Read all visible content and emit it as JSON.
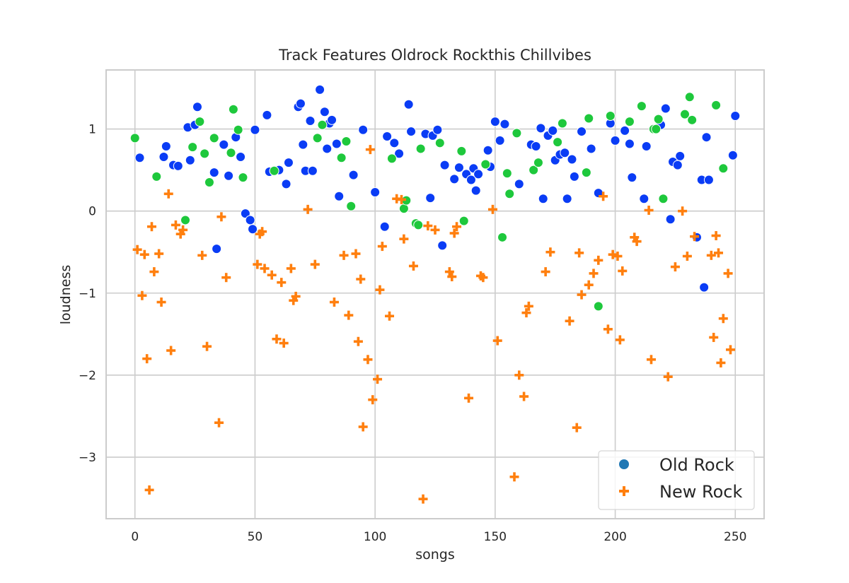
{
  "chart_data": {
    "type": "scatter",
    "title": "Track Features Oldrock Rockthis Chillvibes",
    "xlabel": "songs",
    "ylabel": "loudness",
    "xlim": [
      -12,
      262
    ],
    "ylim": [
      -3.75,
      1.72
    ],
    "xticks": [
      0,
      50,
      100,
      150,
      200,
      250
    ],
    "yticks": [
      -3,
      -2,
      -1,
      0,
      1
    ],
    "ytick_labels": [
      "−3",
      "−2",
      "−1",
      "0",
      "1"
    ],
    "grid": true,
    "legend": {
      "placement": "lower-right",
      "entries": [
        {
          "label": "Old Rock",
          "marker": "circle",
          "color": "#1f77b4"
        },
        {
          "label": "New Rock",
          "marker": "plus",
          "color": "#ff7f0e"
        }
      ]
    },
    "series": [
      {
        "marker": "circle",
        "color": "#0a3cf5",
        "points": [
          [
            2,
            0.65
          ],
          [
            12,
            0.66
          ],
          [
            13,
            0.79
          ],
          [
            16,
            0.56
          ],
          [
            18,
            0.55
          ],
          [
            22,
            1.02
          ],
          [
            23,
            0.62
          ],
          [
            25,
            1.05
          ],
          [
            26,
            1.27
          ],
          [
            33,
            0.47
          ],
          [
            34,
            -0.46
          ],
          [
            37,
            0.81
          ],
          [
            39,
            0.43
          ],
          [
            42,
            0.9
          ],
          [
            44,
            0.66
          ],
          [
            46,
            -0.03
          ],
          [
            48,
            -0.11
          ],
          [
            49,
            -0.22
          ],
          [
            50,
            0.99
          ],
          [
            55,
            1.17
          ],
          [
            56,
            0.48
          ],
          [
            58,
            0.49
          ],
          [
            60,
            0.5
          ],
          [
            63,
            0.33
          ],
          [
            64,
            0.59
          ],
          [
            68,
            1.27
          ],
          [
            69,
            1.31
          ],
          [
            70,
            0.81
          ],
          [
            71,
            0.49
          ],
          [
            73,
            1.1
          ],
          [
            74,
            0.49
          ],
          [
            77,
            1.48
          ],
          [
            79,
            1.21
          ],
          [
            80,
            0.76
          ],
          [
            81,
            1.07
          ],
          [
            82,
            1.11
          ],
          [
            84,
            0.82
          ],
          [
            85,
            0.18
          ],
          [
            91,
            0.44
          ],
          [
            95,
            0.99
          ],
          [
            100,
            0.23
          ],
          [
            104,
            -0.19
          ],
          [
            105,
            0.91
          ],
          [
            108,
            0.83
          ],
          [
            110,
            0.7
          ],
          [
            114,
            1.3
          ],
          [
            115,
            0.97
          ],
          [
            121,
            0.94
          ],
          [
            123,
            0.16
          ],
          [
            124,
            0.92
          ],
          [
            126,
            0.99
          ],
          [
            128,
            -0.42
          ],
          [
            129,
            0.56
          ],
          [
            133,
            0.39
          ],
          [
            135,
            0.53
          ],
          [
            138,
            0.45
          ],
          [
            140,
            0.38
          ],
          [
            141,
            0.52
          ],
          [
            142,
            0.25
          ],
          [
            143,
            0.45
          ],
          [
            147,
            0.74
          ],
          [
            148,
            0.54
          ],
          [
            150,
            1.09
          ],
          [
            152,
            0.86
          ],
          [
            154,
            1.06
          ],
          [
            160,
            0.33
          ],
          [
            165,
            0.81
          ],
          [
            167,
            0.79
          ],
          [
            169,
            1.01
          ],
          [
            170,
            0.15
          ],
          [
            172,
            0.92
          ],
          [
            174,
            0.98
          ],
          [
            175,
            0.62
          ],
          [
            177,
            0.69
          ],
          [
            179,
            0.71
          ],
          [
            180,
            0.15
          ],
          [
            182,
            0.63
          ],
          [
            183,
            0.42
          ],
          [
            186,
            0.97
          ],
          [
            190,
            0.76
          ],
          [
            193,
            0.22
          ],
          [
            198,
            1.07
          ],
          [
            200,
            0.86
          ],
          [
            204,
            0.98
          ],
          [
            206,
            0.82
          ],
          [
            207,
            0.41
          ],
          [
            212,
            0.15
          ],
          [
            213,
            0.79
          ],
          [
            219,
            1.05
          ],
          [
            221,
            1.25
          ],
          [
            223,
            -0.1
          ],
          [
            224,
            0.6
          ],
          [
            226,
            0.56
          ],
          [
            227,
            0.67
          ],
          [
            234,
            -0.32
          ],
          [
            236,
            0.38
          ],
          [
            237,
            -0.93
          ],
          [
            238,
            0.9
          ],
          [
            239,
            0.38
          ],
          [
            249,
            0.68
          ],
          [
            250,
            1.16
          ]
        ]
      },
      {
        "marker": "circle",
        "color": "#1ec83c",
        "points": [
          [
            0,
            0.89
          ],
          [
            9,
            0.42
          ],
          [
            21,
            -0.11
          ],
          [
            24,
            0.78
          ],
          [
            27,
            1.09
          ],
          [
            29,
            0.7
          ],
          [
            31,
            0.35
          ],
          [
            33,
            0.89
          ],
          [
            40,
            0.71
          ],
          [
            41,
            1.24
          ],
          [
            43,
            0.99
          ],
          [
            45,
            0.41
          ],
          [
            58,
            0.49
          ],
          [
            76,
            0.89
          ],
          [
            78,
            1.05
          ],
          [
            86,
            0.65
          ],
          [
            88,
            0.85
          ],
          [
            90,
            0.06
          ],
          [
            107,
            0.64
          ],
          [
            112,
            0.03
          ],
          [
            113,
            0.13
          ],
          [
            117,
            -0.15
          ],
          [
            118,
            -0.17
          ],
          [
            119,
            0.76
          ],
          [
            127,
            0.83
          ],
          [
            136,
            0.73
          ],
          [
            137,
            -0.12
          ],
          [
            146,
            0.57
          ],
          [
            153,
            -0.32
          ],
          [
            155,
            0.46
          ],
          [
            156,
            0.21
          ],
          [
            159,
            0.95
          ],
          [
            166,
            0.5
          ],
          [
            168,
            0.59
          ],
          [
            176,
            0.84
          ],
          [
            178,
            1.07
          ],
          [
            188,
            0.47
          ],
          [
            189,
            1.13
          ],
          [
            193,
            -1.16
          ],
          [
            198,
            1.16
          ],
          [
            206,
            1.09
          ],
          [
            211,
            1.28
          ],
          [
            216,
            1.0
          ],
          [
            217,
            1.0
          ],
          [
            218,
            1.12
          ],
          [
            220,
            0.15
          ],
          [
            229,
            1.18
          ],
          [
            231,
            1.39
          ],
          [
            232,
            1.11
          ],
          [
            242,
            1.29
          ],
          [
            245,
            0.52
          ]
        ]
      },
      {
        "marker": "plus",
        "color": "#ff7f0e",
        "points": [
          [
            1,
            -0.47
          ],
          [
            3,
            -1.03
          ],
          [
            4,
            -0.53
          ],
          [
            5,
            -1.8
          ],
          [
            6,
            -3.4
          ],
          [
            7,
            -0.19
          ],
          [
            8,
            -0.74
          ],
          [
            10,
            -0.52
          ],
          [
            11,
            -1.11
          ],
          [
            14,
            0.21
          ],
          [
            15,
            -1.7
          ],
          [
            17,
            -0.17
          ],
          [
            19,
            -0.28
          ],
          [
            20,
            -0.23
          ],
          [
            28,
            -0.54
          ],
          [
            30,
            -1.65
          ],
          [
            35,
            -2.58
          ],
          [
            36,
            -0.07
          ],
          [
            38,
            -0.81
          ],
          [
            51,
            -0.65
          ],
          [
            52,
            -0.28
          ],
          [
            53,
            -0.25
          ],
          [
            54,
            -0.7
          ],
          [
            57,
            -0.78
          ],
          [
            59,
            -1.56
          ],
          [
            61,
            -0.87
          ],
          [
            62,
            -1.61
          ],
          [
            65,
            -0.7
          ],
          [
            66,
            -1.09
          ],
          [
            67,
            -1.04
          ],
          [
            72,
            0.02
          ],
          [
            75,
            -0.65
          ],
          [
            83,
            -1.11
          ],
          [
            87,
            -0.54
          ],
          [
            89,
            -1.27
          ],
          [
            92,
            -0.52
          ],
          [
            93,
            -1.59
          ],
          [
            94,
            -0.83
          ],
          [
            95,
            -2.63
          ],
          [
            97,
            -1.81
          ],
          [
            98,
            0.75
          ],
          [
            99,
            -2.3
          ],
          [
            101,
            -2.05
          ],
          [
            102,
            -0.96
          ],
          [
            103,
            -0.43
          ],
          [
            106,
            -1.28
          ],
          [
            109,
            0.15
          ],
          [
            111,
            0.14
          ],
          [
            112,
            -0.34
          ],
          [
            116,
            -0.67
          ],
          [
            120,
            -3.51
          ],
          [
            122,
            -0.18
          ],
          [
            125,
            -0.23
          ],
          [
            131,
            -0.74
          ],
          [
            132,
            -0.8
          ],
          [
            133,
            -0.27
          ],
          [
            134,
            -0.19
          ],
          [
            139,
            -2.28
          ],
          [
            144,
            -0.79
          ],
          [
            145,
            -0.81
          ],
          [
            149,
            0.02
          ],
          [
            151,
            -1.58
          ],
          [
            158,
            -3.24
          ],
          [
            160,
            -2.0
          ],
          [
            162,
            -2.26
          ],
          [
            163,
            -1.24
          ],
          [
            164,
            -1.16
          ],
          [
            171,
            -0.74
          ],
          [
            173,
            -0.5
          ],
          [
            181,
            -1.34
          ],
          [
            184,
            -2.64
          ],
          [
            185,
            -0.51
          ],
          [
            186,
            -1.02
          ],
          [
            189,
            -0.9
          ],
          [
            191,
            -0.76
          ],
          [
            193,
            -0.6
          ],
          [
            195,
            0.18
          ],
          [
            197,
            -1.44
          ],
          [
            199,
            -0.53
          ],
          [
            201,
            -0.55
          ],
          [
            202,
            -1.57
          ],
          [
            203,
            -0.73
          ],
          [
            208,
            -0.32
          ],
          [
            209,
            -0.37
          ],
          [
            214,
            0.01
          ],
          [
            215,
            -1.81
          ],
          [
            222,
            -2.02
          ],
          [
            225,
            -0.68
          ],
          [
            228,
            0.0
          ],
          [
            230,
            -0.55
          ],
          [
            233,
            -0.31
          ],
          [
            240,
            -0.54
          ],
          [
            241,
            -1.54
          ],
          [
            242,
            -0.3
          ],
          [
            243,
            -0.51
          ],
          [
            244,
            -1.85
          ],
          [
            245,
            -1.31
          ],
          [
            247,
            -0.76
          ],
          [
            248,
            -1.69
          ]
        ]
      }
    ]
  }
}
